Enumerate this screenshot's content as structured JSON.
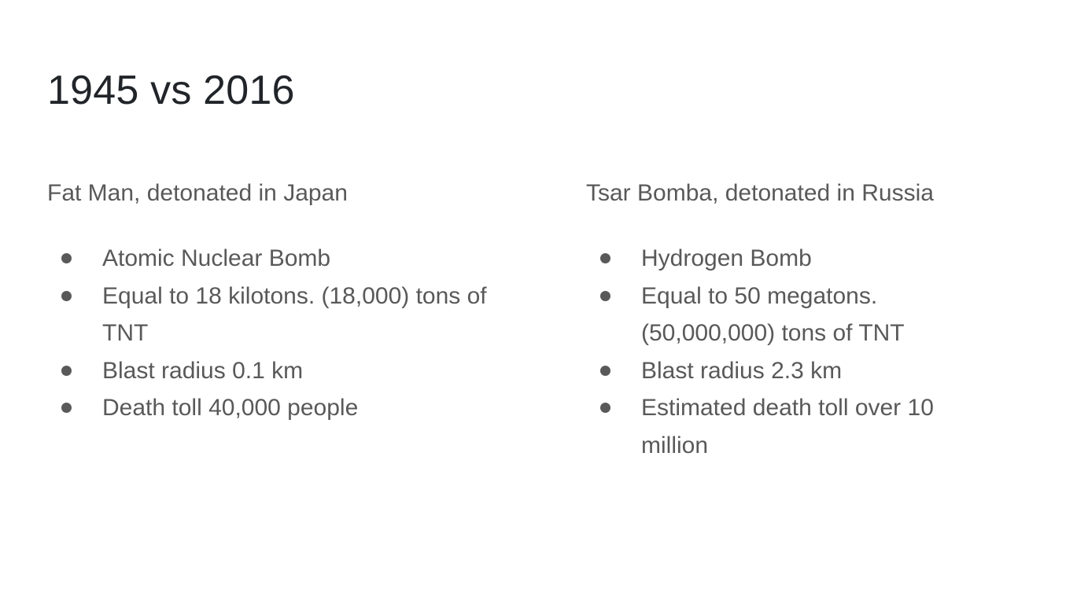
{
  "slide": {
    "title": "1945 vs 2016",
    "columns": [
      {
        "heading": "Fat Man, detonated in Japan",
        "bullets": [
          "Atomic Nuclear Bomb",
          "Equal to 18 kilotons. (18,000) tons of TNT",
          "Blast radius 0.1 km",
          "Death toll 40,000 people"
        ]
      },
      {
        "heading": "Tsar Bomba, detonated in Russia",
        "bullets": [
          "Hydrogen Bomb",
          "Equal to 50 megatons. (50,000,000) tons of TNT",
          "Blast radius 2.3 km",
          "Estimated death toll over 10 million"
        ]
      }
    ]
  }
}
